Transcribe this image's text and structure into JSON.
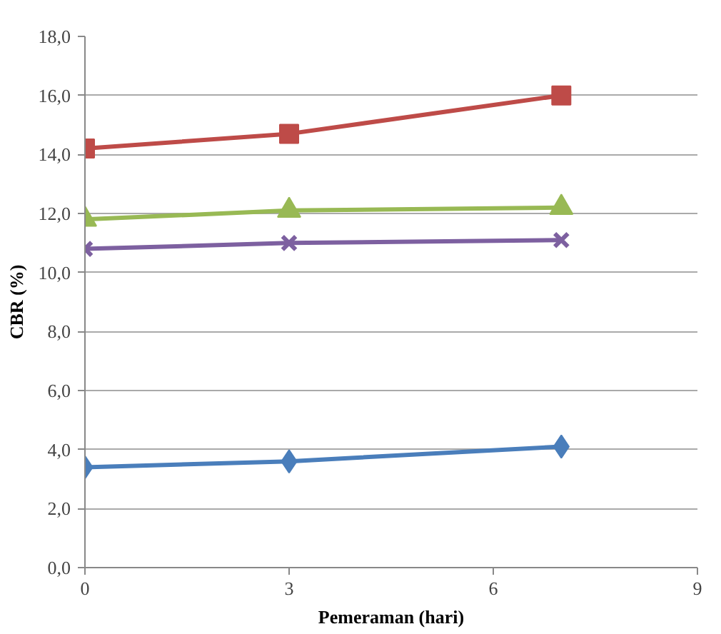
{
  "chart_data": {
    "type": "line",
    "xlabel": "Pemeraman (hari)",
    "ylabel": "CBR (%)",
    "x": [
      0,
      3,
      7
    ],
    "xlim": [
      0,
      9
    ],
    "xticks": [
      0,
      3,
      6,
      9
    ],
    "ylim": [
      0,
      18
    ],
    "yticks": [
      {
        "value": 0,
        "label": "0,0"
      },
      {
        "value": 2,
        "label": "2,0"
      },
      {
        "value": 4,
        "label": "4,0"
      },
      {
        "value": 6,
        "label": "6,0"
      },
      {
        "value": 8,
        "label": "8,0"
      },
      {
        "value": 10,
        "label": "10,0"
      },
      {
        "value": 12,
        "label": "12,0"
      },
      {
        "value": 14,
        "label": "14,0"
      },
      {
        "value": 16,
        "label": "16,0"
      },
      {
        "value": 18,
        "label": "18,0"
      }
    ],
    "grid": "y",
    "line_style": "solid",
    "series": [
      {
        "color": "#4a7ebb",
        "marker": "diamond",
        "values": [
          3.4,
          3.6,
          4.1
        ]
      },
      {
        "color": "#be4b48",
        "marker": "square",
        "values": [
          14.2,
          14.7,
          16.0
        ]
      },
      {
        "color": "#98b954",
        "marker": "triangle",
        "values": [
          11.8,
          12.1,
          12.2
        ]
      },
      {
        "color": "#7d60a0",
        "marker": "cross",
        "values": [
          10.8,
          11.0,
          11.1
        ]
      }
    ]
  }
}
